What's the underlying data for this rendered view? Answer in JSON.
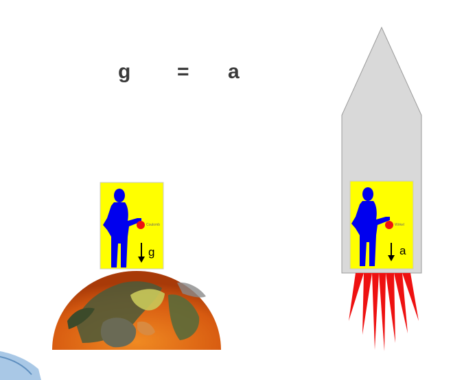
{
  "equation": {
    "left": "g",
    "operator": "=",
    "right": "a"
  },
  "earth_scene": {
    "arrow_label": "g",
    "ball_label": "Coulomb"
  },
  "rocket_scene": {
    "arrow_label": "a",
    "ball_label": "Wirkel"
  },
  "colors": {
    "box_fill": "#ffff00",
    "person": "#0000ee",
    "ball": "#ee1111",
    "rocket_body": "#d9d9d9",
    "flames": "#ee1111",
    "earth_ocean": "#e36a12",
    "earth_land": "#4b5a3a"
  }
}
